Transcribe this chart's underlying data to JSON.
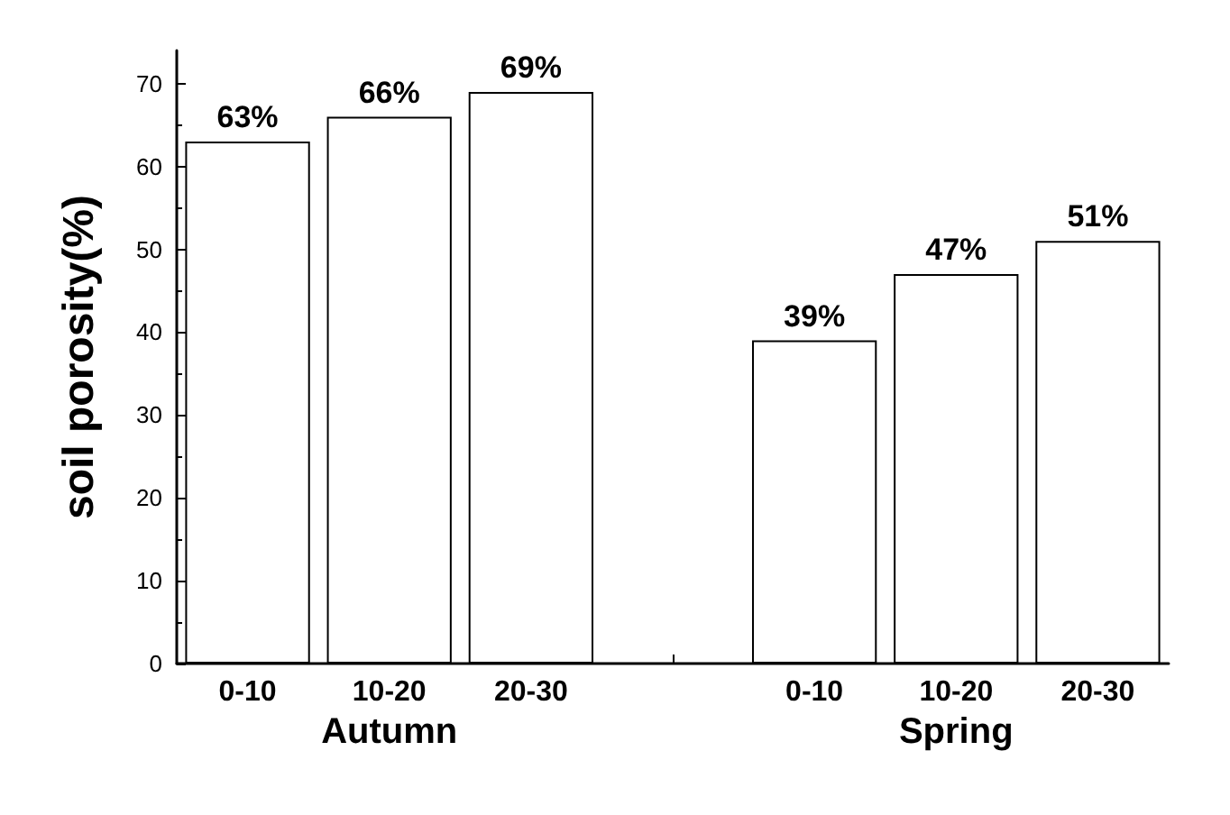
{
  "chart_data": {
    "type": "bar",
    "ylabel": "soil porosity(%)",
    "categories": [
      "0-10",
      "10-20",
      "20-30",
      null,
      "0-10",
      "10-20",
      "20-30"
    ],
    "values": [
      63,
      66,
      69,
      null,
      39,
      47,
      51
    ],
    "value_labels": [
      "63%",
      "66%",
      "69%",
      null,
      "39%",
      "47%",
      "51%"
    ],
    "color": "#ffffff",
    "annotations": [
      "Autumn",
      "Spring"
    ],
    "ylim": [
      0,
      74
    ],
    "yticks": [
      0,
      10,
      20,
      30,
      40,
      50,
      60,
      70
    ]
  }
}
